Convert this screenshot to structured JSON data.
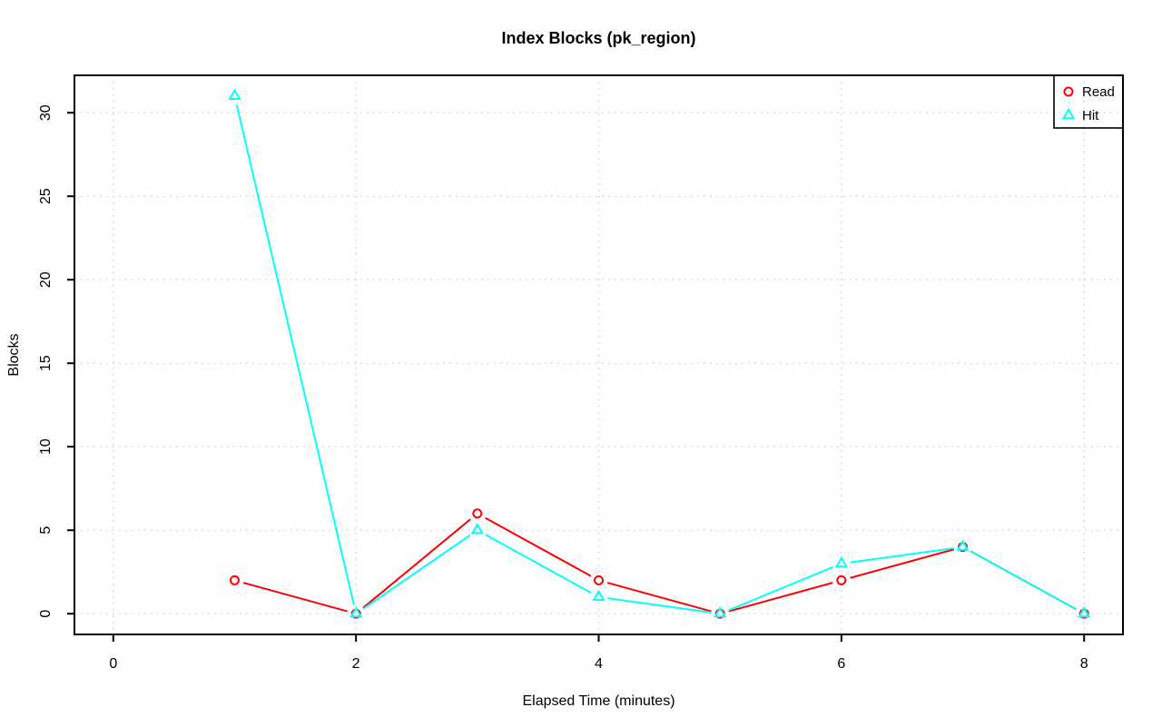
{
  "page": {
    "background": "#FFFFFF"
  },
  "chart_data": {
    "type": "line",
    "title": "Index Blocks (pk_region)",
    "xlabel": "Elapsed Time (minutes)",
    "ylabel": "Blocks",
    "x": [
      1,
      2,
      3,
      4,
      5,
      6,
      7,
      8
    ],
    "series": [
      {
        "name": "Read",
        "values": [
          2,
          0,
          6,
          2,
          0,
          2,
          4,
          0
        ],
        "color": "#FF0000",
        "marker": "circle"
      },
      {
        "name": "Hit",
        "values": [
          31,
          0,
          5,
          1,
          0,
          3,
          4,
          0
        ],
        "color": "#00FFFF",
        "marker": "triangle"
      }
    ],
    "x_ticks": [
      0,
      2,
      4,
      6,
      8
    ],
    "y_ticks": [
      0,
      5,
      10,
      15,
      20,
      25,
      30
    ],
    "xlim": [
      -0.32,
      8.32
    ],
    "ylim": [
      -1.24,
      32.24
    ],
    "grid": true,
    "grid_color": "#D3D3D3",
    "axis_color": "#000000",
    "line_style": "points-with-line-gaps",
    "legend": {
      "position": "top-right",
      "entries": [
        {
          "label": "Read",
          "marker": "circle",
          "color": "#FF0000"
        },
        {
          "label": "Hit",
          "marker": "triangle",
          "color": "#00FFFF"
        }
      ]
    }
  }
}
